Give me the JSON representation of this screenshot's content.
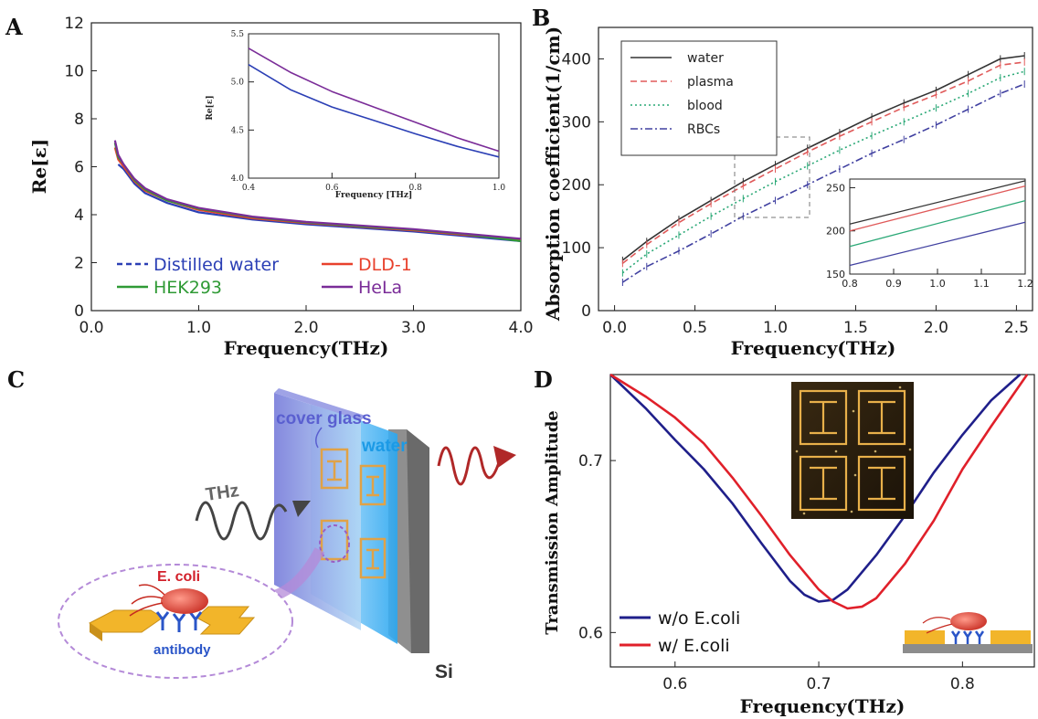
{
  "panels": {
    "A": {
      "letter": "A",
      "chart_data": {
        "type": "line",
        "xlabel": "Frequency(THz)",
        "ylabel": "Re[ε]",
        "xlim": [
          0,
          4
        ],
        "ylim": [
          0,
          12
        ],
        "xticks": [
          "0.0",
          "1.0",
          "2.0",
          "3.0",
          "4.0"
        ],
        "yticks": [
          "0",
          "2",
          "4",
          "6",
          "8",
          "10",
          "12"
        ],
        "legend_position": "bottom-left",
        "series": [
          {
            "name": "Distilled water",
            "color": "#2b3fb5",
            "x": [
              0.25,
              0.3,
              0.4,
              0.5,
              0.7,
              1.0,
              1.5,
              2.0,
              2.5,
              3.0,
              3.5,
              4.0
            ],
            "y": [
              6.1,
              5.9,
              5.3,
              4.9,
              4.5,
              4.1,
              3.8,
              3.6,
              3.45,
              3.3,
              3.1,
              2.9
            ]
          },
          {
            "name": "DLD-1",
            "color": "#e8412c",
            "x": [
              0.22,
              0.25,
              0.3,
              0.4,
              0.5,
              0.7,
              1.0,
              1.5,
              2.0,
              2.5,
              3.0,
              3.5,
              4.0
            ],
            "y": [
              6.8,
              6.3,
              6.0,
              5.4,
              5.0,
              4.6,
              4.2,
              3.85,
              3.65,
              3.5,
              3.35,
              3.15,
              2.95
            ]
          },
          {
            "name": "HEK293",
            "color": "#2f9a35",
            "x": [
              0.22,
              0.25,
              0.3,
              0.4,
              0.5,
              0.7,
              1.0,
              1.5,
              2.0,
              2.5,
              3.0,
              3.5,
              4.0
            ],
            "y": [
              7.0,
              6.4,
              6.1,
              5.45,
              5.05,
              4.6,
              4.25,
              3.9,
              3.68,
              3.52,
              3.38,
              3.18,
              2.9
            ]
          },
          {
            "name": "HeLa",
            "color": "#7a2c98",
            "x": [
              0.22,
              0.25,
              0.3,
              0.4,
              0.5,
              0.7,
              1.0,
              1.5,
              2.0,
              2.5,
              3.0,
              3.5,
              4.0
            ],
            "y": [
              7.1,
              6.5,
              6.1,
              5.5,
              5.1,
              4.65,
              4.28,
              3.92,
              3.7,
              3.55,
              3.4,
              3.2,
              3.0
            ]
          }
        ],
        "inset": {
          "xlabel": "Frequency [THz]",
          "ylabel": "Re[ε]",
          "xlim": [
            0.4,
            1.0
          ],
          "ylim": [
            4.0,
            5.5
          ],
          "xticks": [
            "0.4",
            "0.6",
            "0.8",
            "1.0"
          ],
          "yticks": [
            "4.0",
            "4.5",
            "5.0",
            "5.5"
          ],
          "series": [
            {
              "color": "#2b3fb5",
              "x": [
                0.4,
                0.5,
                0.6,
                0.7,
                0.8,
                0.9,
                1.0
              ],
              "y": [
                5.18,
                4.92,
                4.74,
                4.6,
                4.46,
                4.33,
                4.22
              ]
            },
            {
              "color": "#7a2c98",
              "x": [
                0.4,
                0.5,
                0.6,
                0.7,
                0.8,
                0.9,
                1.0
              ],
              "y": [
                5.35,
                5.1,
                4.9,
                4.74,
                4.58,
                4.42,
                4.28
              ]
            }
          ]
        }
      }
    },
    "B": {
      "letter": "B",
      "chart_data": {
        "type": "line",
        "xlabel": "Frequency(THz)",
        "ylabel": "Absorption coefficient(1/cm)",
        "xlim": [
          -0.1,
          2.6
        ],
        "ylim": [
          0,
          450
        ],
        "xticks": [
          "0.0",
          "0.5",
          "1.0",
          "1.5",
          "2.0",
          "2.5"
        ],
        "yticks": [
          "0",
          "100",
          "200",
          "300",
          "400"
        ],
        "legend_position": "top-left",
        "series": [
          {
            "name": "water",
            "color": "#333333",
            "dash": "solid",
            "x": [
              0.05,
              0.2,
              0.4,
              0.6,
              0.8,
              1.0,
              1.2,
              1.4,
              1.6,
              1.8,
              2.0,
              2.2,
              2.4,
              2.55
            ],
            "y": [
              80,
              110,
              145,
              175,
              205,
              232,
              258,
              283,
              308,
              330,
              350,
              375,
              400,
              405
            ]
          },
          {
            "name": "plasma",
            "color": "#e05a5a",
            "dash": "dashed",
            "x": [
              0.05,
              0.2,
              0.4,
              0.6,
              0.8,
              1.0,
              1.2,
              1.4,
              1.6,
              1.8,
              2.0,
              2.2,
              2.4,
              2.55
            ],
            "y": [
              75,
              105,
              140,
              170,
              198,
              225,
              252,
              277,
              300,
              323,
              343,
              365,
              390,
              395
            ]
          },
          {
            "name": "blood",
            "color": "#2aa876",
            "dash": "dotted",
            "x": [
              0.05,
              0.2,
              0.4,
              0.6,
              0.8,
              1.0,
              1.2,
              1.4,
              1.6,
              1.8,
              2.0,
              2.2,
              2.4,
              2.55
            ],
            "y": [
              60,
              90,
              120,
              150,
              178,
              205,
              230,
              255,
              278,
              300,
              322,
              345,
              370,
              380
            ]
          },
          {
            "name": "RBCs",
            "color": "#4040a0",
            "dash": "dashdot",
            "x": [
              0.05,
              0.2,
              0.4,
              0.6,
              0.8,
              1.0,
              1.2,
              1.4,
              1.6,
              1.8,
              2.0,
              2.2,
              2.4,
              2.55
            ],
            "y": [
              45,
              70,
              95,
              122,
              150,
              175,
              200,
              225,
              250,
              272,
              295,
              320,
              345,
              360
            ]
          }
        ],
        "inset": {
          "xlim": [
            0.8,
            1.2
          ],
          "ylim": [
            150,
            260
          ],
          "xticks": [
            "0.8",
            "0.9",
            "1.0",
            "1.1",
            "1.2"
          ],
          "yticks": [
            "150",
            "200",
            "250"
          ],
          "series": [
            {
              "color": "#333333",
              "x": [
                0.8,
                1.2
              ],
              "y": [
                208,
                258
              ]
            },
            {
              "color": "#e05a5a",
              "x": [
                0.8,
                1.2
              ],
              "y": [
                200,
                252
              ]
            },
            {
              "color": "#2aa876",
              "x": [
                0.8,
                1.2
              ],
              "y": [
                182,
                235
              ]
            },
            {
              "color": "#4040a0",
              "x": [
                0.8,
                1.2
              ],
              "y": [
                160,
                210
              ]
            }
          ]
        }
      }
    },
    "C": {
      "letter": "C",
      "labels": {
        "cover_glass": "cover glass",
        "water": "water",
        "thz": "THz",
        "ecoli": "E. coli",
        "antibody": "antibody",
        "si": "Si"
      }
    },
    "D": {
      "letter": "D",
      "chart_data": {
        "type": "line",
        "xlabel": "Frequency(THz)",
        "ylabel": "Transmission Amplitude",
        "xlim": [
          0.555,
          0.85
        ],
        "ylim": [
          0.58,
          0.75
        ],
        "xticks": [
          "0.6",
          "0.7",
          "0.8"
        ],
        "yticks": [
          "0.6",
          "0.7"
        ],
        "legend_position": "bottom-left",
        "series": [
          {
            "name": "w/o E.coli",
            "color": "#1f1f8a",
            "x": [
              0.555,
              0.58,
              0.6,
              0.62,
              0.64,
              0.66,
              0.68,
              0.69,
              0.7,
              0.71,
              0.72,
              0.74,
              0.76,
              0.78,
              0.8,
              0.82,
              0.84
            ],
            "y": [
              0.75,
              0.73,
              0.712,
              0.695,
              0.675,
              0.652,
              0.63,
              0.622,
              0.618,
              0.619,
              0.625,
              0.645,
              0.668,
              0.693,
              0.715,
              0.735,
              0.75
            ]
          },
          {
            "name": "w/ E.coli",
            "color": "#e0202a",
            "x": [
              0.555,
              0.58,
              0.6,
              0.62,
              0.64,
              0.66,
              0.68,
              0.7,
              0.71,
              0.72,
              0.73,
              0.74,
              0.76,
              0.78,
              0.8,
              0.82,
              0.845
            ],
            "y": [
              0.75,
              0.737,
              0.725,
              0.71,
              0.69,
              0.668,
              0.645,
              0.625,
              0.618,
              0.614,
              0.615,
              0.62,
              0.64,
              0.665,
              0.695,
              0.72,
              0.75
            ]
          }
        ]
      }
    }
  }
}
